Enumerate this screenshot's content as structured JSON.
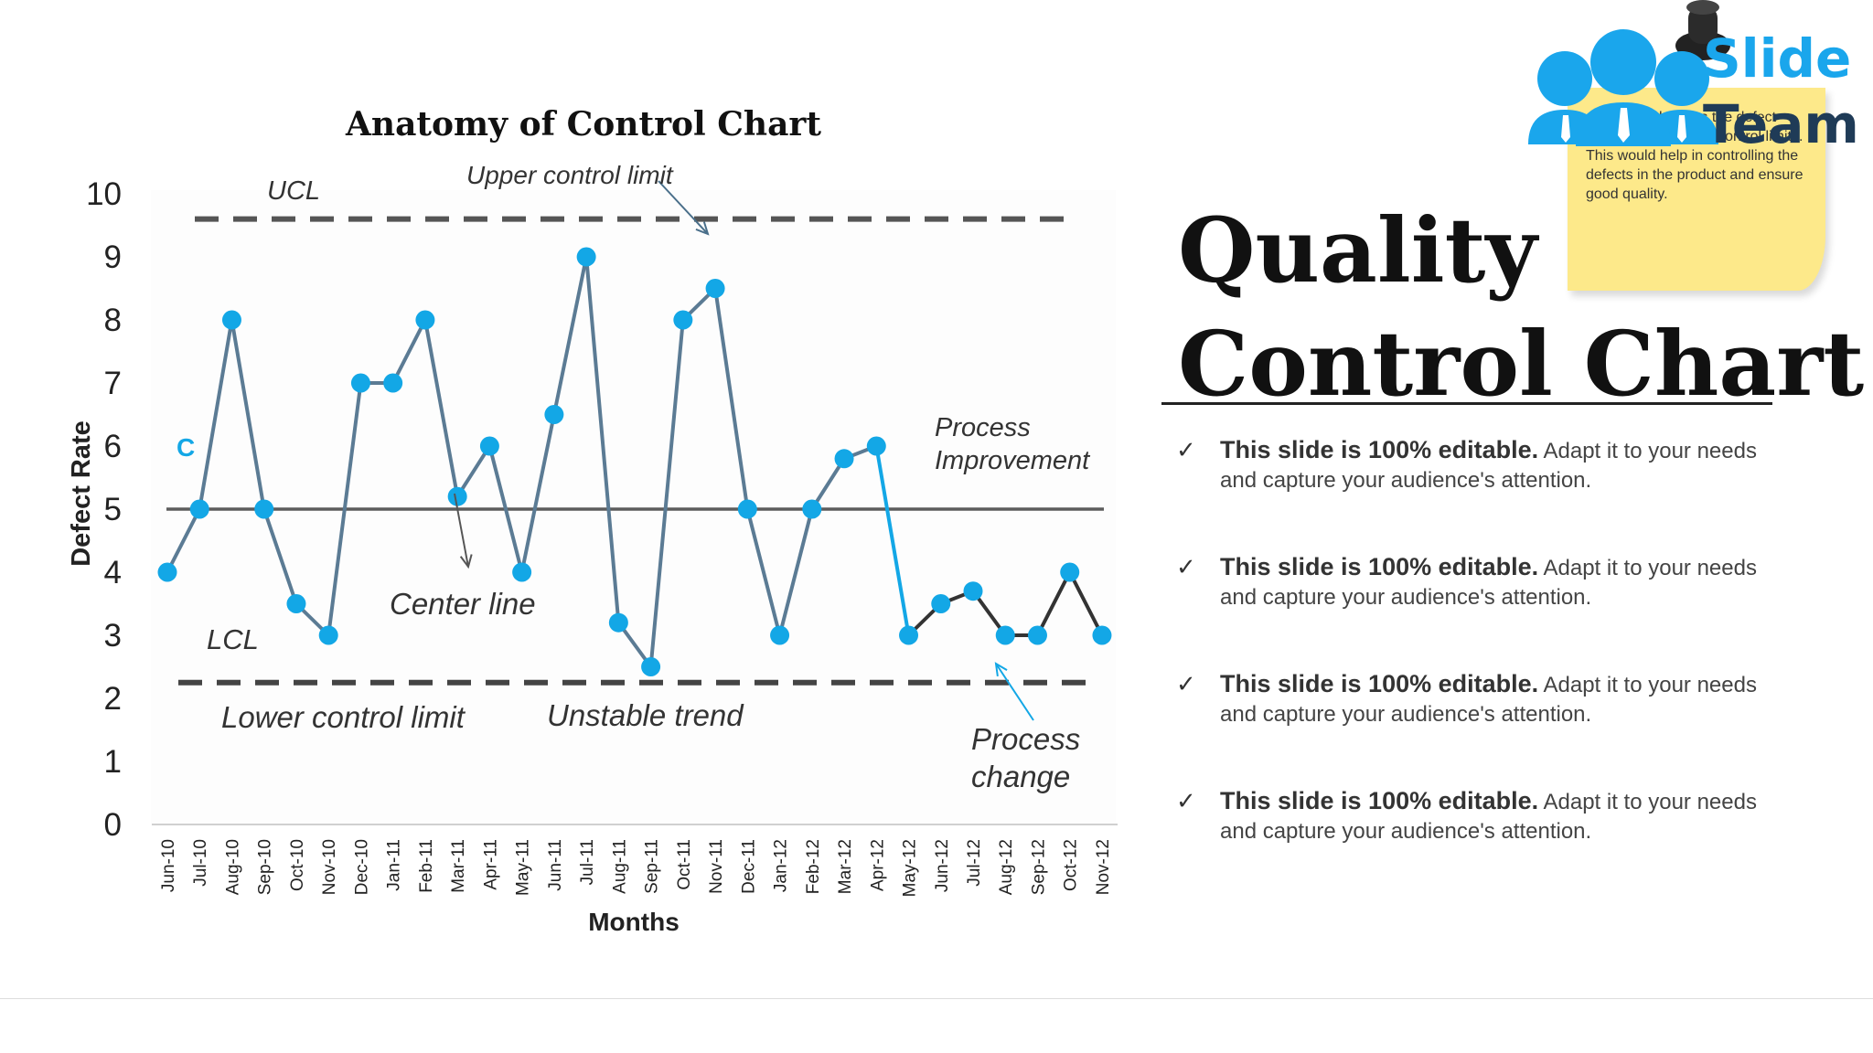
{
  "slide": {
    "title_line1": "Quality",
    "title_line2": "Control Chart",
    "bullets": [
      {
        "bold": "This slide is 100% editable.",
        "text": " Adapt it to your needs and capture your audience's attention."
      },
      {
        "bold": "This slide is 100% editable.",
        "text": " Adapt it to your needs and capture your audience's attention."
      },
      {
        "bold": "This slide is 100% editable.",
        "text": " Adapt it to your needs and capture your audience's attention."
      },
      {
        "bold": "This slide is 100% editable.",
        "text": " Adapt it to your needs and capture your audience's attention."
      }
    ],
    "note_text": "ed a control ecifies the defect rate along with their control limits. This would help in controlling the defects in the product and ensure good quality.",
    "logo_word1": "Slide",
    "logo_word2": "Team",
    "check_glyph": "✓"
  },
  "chart_data": {
    "type": "line",
    "title": "Anatomy of Control Chart",
    "xlabel": "Months",
    "ylabel": "Defect Rate",
    "ylim": [
      0,
      10
    ],
    "yticks": [
      0,
      1,
      2,
      3,
      4,
      5,
      6,
      7,
      8,
      9,
      10
    ],
    "grid": false,
    "categories": [
      "Jun-10",
      "Jul-10",
      "Aug-10",
      "Sep-10",
      "Oct-10",
      "Nov-10",
      "Dec-10",
      "Jan-11",
      "Feb-11",
      "Mar-11",
      "Apr-11",
      "May-11",
      "Jun-11",
      "Jul-11",
      "Aug-11",
      "Sep-11",
      "Oct-11",
      "Nov-11",
      "Dec-11",
      "Jan-12",
      "Feb-12",
      "Mar-12",
      "Apr-12",
      "May-12",
      "Jun-12",
      "Jul-12",
      "Aug-12",
      "Sep-12",
      "Oct-12",
      "Nov-12"
    ],
    "values": [
      4,
      5,
      8,
      5,
      3.5,
      3,
      7,
      7,
      8,
      5.2,
      6,
      4,
      6.5,
      9,
      3.2,
      2.5,
      8,
      8.5,
      5,
      3,
      5,
      5.8,
      6,
      3,
      3.5,
      3.7,
      3,
      3,
      4,
      3
    ],
    "ucl": 9.6,
    "center": 5,
    "lcl": 2.25,
    "labels": {
      "ucl": "UCL",
      "lcl": "LCL",
      "c": "C",
      "upper_limit": "Upper control limit",
      "center_line": "Center line",
      "lower_limit": "Lower control limit",
      "unstable": "Unstable trend",
      "improvement_1": "Process",
      "improvement_2": "Improvement",
      "change_1": "Process",
      "change_2": "change"
    },
    "colors": {
      "line_early": "#5b7b94",
      "line_late": "#333333",
      "point": "#13a7e6",
      "limit": "#555555",
      "center": "#5c5c5c"
    }
  }
}
